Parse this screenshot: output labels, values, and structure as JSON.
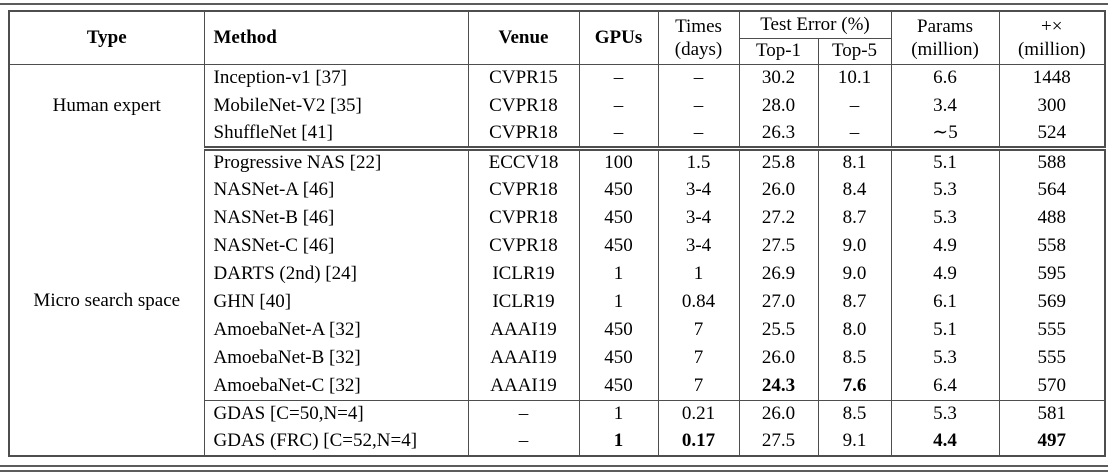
{
  "table": {
    "header": {
      "type": "Type",
      "method": "Method",
      "venue": "Venue",
      "gpus": "GPUs",
      "times_line1": "Times",
      "times_line2": "(days)",
      "test_error": "Test Error (%)",
      "top1": "Top-1",
      "top5": "Top-5",
      "params_line1": "Params",
      "params_line2": "(million)",
      "madds_line1": "+×",
      "madds_line2": "(million)"
    },
    "border_color": "#4e4e4e",
    "sections": [
      {
        "type": "Human expert",
        "rows": [
          {
            "method": "Inception-v1 [37]",
            "venue": "CVPR15",
            "gpus": "–",
            "times": "–",
            "top1": "30.2",
            "top5": "10.1",
            "params": "6.6",
            "madds": "1448",
            "bold": []
          },
          {
            "method": "MobileNet-V2 [35]",
            "venue": "CVPR18",
            "gpus": "–",
            "times": "–",
            "top1": "28.0",
            "top5": "–",
            "params": "3.4",
            "madds": "300",
            "bold": []
          },
          {
            "method": "ShuffleNet [41]",
            "venue": "CVPR18",
            "gpus": "–",
            "times": "–",
            "top1": "26.3",
            "top5": "–",
            "params": "∼5",
            "madds": "524",
            "bold": []
          }
        ]
      },
      {
        "type": "Micro search space",
        "rows": [
          {
            "method": "Progressive NAS [22]",
            "venue": "ECCV18",
            "gpus": "100",
            "times": "1.5",
            "top1": "25.8",
            "top5": "8.1",
            "params": "5.1",
            "madds": "588",
            "bold": []
          },
          {
            "method": "NASNet-A [46]",
            "venue": "CVPR18",
            "gpus": "450",
            "times": "3-4",
            "top1": "26.0",
            "top5": "8.4",
            "params": "5.3",
            "madds": "564",
            "bold": []
          },
          {
            "method": "NASNet-B [46]",
            "venue": "CVPR18",
            "gpus": "450",
            "times": "3-4",
            "top1": "27.2",
            "top5": "8.7",
            "params": "5.3",
            "madds": "488",
            "bold": []
          },
          {
            "method": "NASNet-C [46]",
            "venue": "CVPR18",
            "gpus": "450",
            "times": "3-4",
            "top1": "27.5",
            "top5": "9.0",
            "params": "4.9",
            "madds": "558",
            "bold": []
          },
          {
            "method": "DARTS (2nd) [24]",
            "venue": "ICLR19",
            "gpus": "1",
            "times": "1",
            "top1": "26.9",
            "top5": "9.0",
            "params": "4.9",
            "madds": "595",
            "bold": []
          },
          {
            "method": "GHN [40]",
            "venue": "ICLR19",
            "gpus": "1",
            "times": "0.84",
            "top1": "27.0",
            "top5": "8.7",
            "params": "6.1",
            "madds": "569",
            "bold": []
          },
          {
            "method": "AmoebaNet-A [32]",
            "venue": "AAAI19",
            "gpus": "450",
            "times": "7",
            "top1": "25.5",
            "top5": "8.0",
            "params": "5.1",
            "madds": "555",
            "bold": []
          },
          {
            "method": "AmoebaNet-B [32]",
            "venue": "AAAI19",
            "gpus": "450",
            "times": "7",
            "top1": "26.0",
            "top5": "8.5",
            "params": "5.3",
            "madds": "555",
            "bold": []
          },
          {
            "method": "AmoebaNet-C [32]",
            "venue": "AAAI19",
            "gpus": "450",
            "times": "7",
            "top1": "24.3",
            "top5": "7.6",
            "params": "6.4",
            "madds": "570",
            "bold": [
              "top1",
              "top5"
            ]
          },
          {
            "method": "GDAS [C=50,N=4]",
            "venue": "–",
            "gpus": "1",
            "times": "0.21",
            "top1": "26.0",
            "top5": "8.5",
            "params": "5.3",
            "madds": "581",
            "bold": [],
            "rule_above": true
          },
          {
            "method": "GDAS (FRC) [C=52,N=4]",
            "venue": "–",
            "gpus": "1",
            "times": "0.17",
            "top1": "27.5",
            "top5": "9.1",
            "params": "4.4",
            "madds": "497",
            "bold": [
              "gpus",
              "times",
              "params",
              "madds"
            ]
          }
        ]
      }
    ]
  }
}
